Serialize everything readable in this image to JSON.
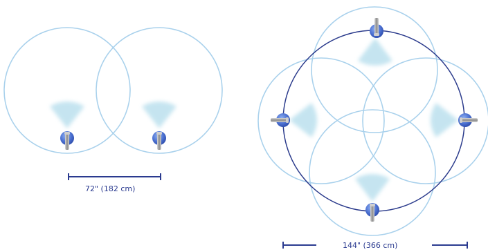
{
  "left_figure": {
    "measurement_label": "72\" (182 cm)"
  },
  "right_figure": {
    "measurement_label": "144\" (366 cm)"
  },
  "colors": {
    "coverage_circle": "#a9d1ec",
    "perimeter_circle": "#2b3b8c",
    "spray_cone": "#bfe2ef",
    "nozzle_body": "#4a6fd0",
    "nozzle_pipe": "#b9b9b9",
    "measure_line": "#2a3a8f"
  }
}
